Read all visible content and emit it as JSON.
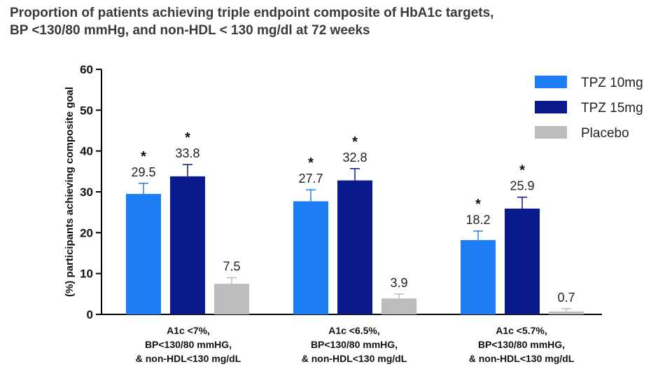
{
  "title_lines": [
    "Proportion of patients achieving triple endpoint composite of HbA1c targets,",
    "BP <130/80 mmHg, and non-HDL < 130 mg/dl at 72 weeks"
  ],
  "chart_data": {
    "type": "bar",
    "title": "Proportion of patients achieving triple endpoint composite of HbA1c targets, BP <130/80 mmHg, and non-HDL < 130 mg/dl at 72 weeks",
    "ylabel": "(%) participants achieving composite goal",
    "xlabel": "",
    "ylim": [
      0,
      60
    ],
    "yticks": [
      0,
      10,
      20,
      30,
      40,
      50,
      60
    ],
    "grid": false,
    "legend_position": "top-right",
    "categories": [
      [
        "A1c <7%,",
        "BP<130/80 mmHG,",
        "& non-HDL<130 mg/dL"
      ],
      [
        "A1c <6.5%,",
        "BP<130/80 mmHG,",
        "& non-HDL<130 mg/dL"
      ],
      [
        "A1c <5.7%,",
        "BP<130/80 mmHG,",
        "& non-HDL<130 mg/dL"
      ]
    ],
    "series": [
      {
        "name": "TPZ 10mg",
        "color": "#1e7ef5",
        "values": [
          29.5,
          27.7,
          18.2
        ],
        "error_upper": [
          32.1,
          30.5,
          20.4
        ],
        "significant": [
          true,
          true,
          true
        ]
      },
      {
        "name": "TPZ 15mg",
        "color": "#0a1a8c",
        "values": [
          33.8,
          32.8,
          25.9
        ],
        "error_upper": [
          36.7,
          35.7,
          28.7
        ],
        "significant": [
          true,
          true,
          true
        ]
      },
      {
        "name": "Placebo",
        "color": "#bcbcbc",
        "values": [
          7.5,
          3.9,
          0.7
        ],
        "error_upper": [
          9.0,
          5.0,
          1.4
        ],
        "significant": [
          false,
          false,
          false
        ]
      }
    ],
    "significance_marker": "*"
  }
}
